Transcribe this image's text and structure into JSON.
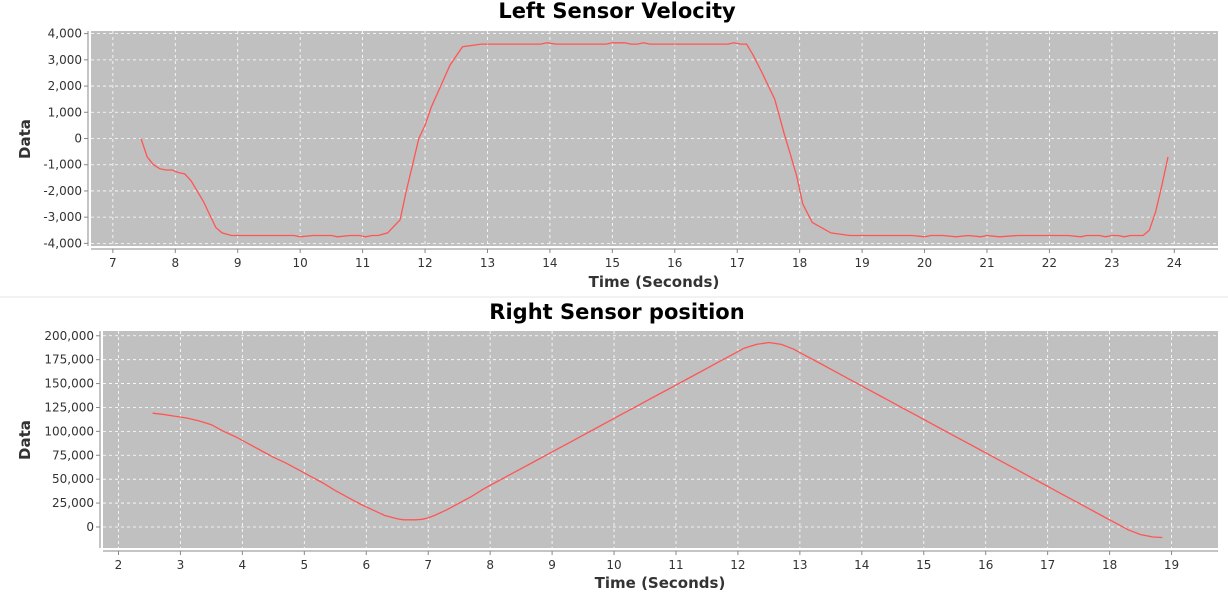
{
  "colors": {
    "plot_background": "#c0c0c0",
    "gridline": "#ffffff",
    "series_line": "#ff5555",
    "axis": "#888888"
  },
  "chart_data": [
    {
      "type": "line",
      "title": "Left Sensor Velocity",
      "xlabel": "Time (Seconds)",
      "ylabel": "Data",
      "xlim": [
        6.65,
        24.7
      ],
      "ylim": [
        -4100,
        4100
      ],
      "x_ticks": [
        7,
        8,
        9,
        10,
        11,
        12,
        13,
        14,
        15,
        16,
        17,
        18,
        19,
        20,
        21,
        22,
        23,
        24
      ],
      "x_tick_labels": [
        "7",
        "8",
        "9",
        "10",
        "11",
        "12",
        "13",
        "14",
        "15",
        "16",
        "17",
        "18",
        "19",
        "20",
        "21",
        "22",
        "23",
        "24"
      ],
      "y_ticks": [
        -4000,
        -3000,
        -2000,
        -1000,
        0,
        1000,
        2000,
        3000,
        4000
      ],
      "y_tick_labels": [
        "-4,000",
        "-3,000",
        "-2,000",
        "-1,000",
        "0",
        "1,000",
        "2,000",
        "3,000",
        "4,000"
      ],
      "grid": true,
      "series": [
        {
          "x": [
            7.45,
            7.55,
            7.65,
            7.75,
            7.85,
            7.95,
            8.05,
            8.15,
            8.25,
            8.35,
            8.45,
            8.55,
            8.65,
            8.75,
            8.9,
            9.2,
            9.6,
            9.9,
            10.0,
            10.2,
            10.5,
            10.6,
            10.8,
            10.95,
            11.05,
            11.15,
            11.25,
            11.4,
            11.6,
            11.7,
            11.8,
            11.9,
            12.0,
            12.1,
            12.25,
            12.4,
            12.6,
            12.9,
            13.3,
            13.7,
            13.85,
            13.95,
            14.1,
            14.5,
            14.9,
            15.0,
            15.1,
            15.2,
            15.3,
            15.4,
            15.5,
            15.6,
            16.0,
            16.5,
            16.6,
            16.7,
            16.85,
            16.95,
            17.05,
            17.15,
            17.25,
            17.4,
            17.6,
            17.75,
            17.85,
            17.95,
            18.05,
            18.2,
            18.5,
            18.8,
            19.0,
            19.5,
            19.6,
            19.8,
            20.0,
            20.1,
            20.3,
            20.5,
            20.7,
            20.9,
            21.0,
            21.2,
            21.5,
            21.8,
            22.0,
            22.3,
            22.5,
            22.6,
            22.8,
            22.9,
            23.0,
            23.1,
            23.2,
            23.3,
            23.4,
            23.5,
            23.6,
            23.7,
            23.8,
            23.9
          ],
          "y": [
            0,
            -700,
            -1000,
            -1150,
            -1200,
            -1200,
            -1300,
            -1350,
            -1600,
            -2000,
            -2400,
            -2900,
            -3400,
            -3600,
            -3700,
            -3700,
            -3700,
            -3700,
            -3750,
            -3700,
            -3700,
            -3750,
            -3700,
            -3700,
            -3750,
            -3700,
            -3700,
            -3600,
            -3100,
            -2000,
            -1000,
            0,
            500,
            1200,
            2000,
            2800,
            3500,
            3600,
            3600,
            3600,
            3600,
            3650,
            3600,
            3600,
            3600,
            3650,
            3650,
            3650,
            3600,
            3600,
            3650,
            3600,
            3600,
            3600,
            3600,
            3600,
            3600,
            3650,
            3600,
            3600,
            3200,
            2500,
            1500,
            200,
            -600,
            -1400,
            -2500,
            -3200,
            -3600,
            -3700,
            -3700,
            -3700,
            -3700,
            -3700,
            -3750,
            -3700,
            -3700,
            -3750,
            -3700,
            -3750,
            -3700,
            -3750,
            -3700,
            -3700,
            -3700,
            -3700,
            -3750,
            -3700,
            -3700,
            -3750,
            -3700,
            -3700,
            -3750,
            -3700,
            -3700,
            -3700,
            -3500,
            -2800,
            -1800,
            -700
          ],
          "y_note": "end"
        }
      ]
    },
    {
      "type": "line",
      "title": "Right Sensor position",
      "xlabel": "Time (Seconds)",
      "ylabel": "Data",
      "xlim": [
        1.75,
        19.75
      ],
      "ylim": [
        -22000,
        205000
      ],
      "x_ticks": [
        2,
        3,
        4,
        5,
        6,
        7,
        8,
        9,
        10,
        11,
        12,
        13,
        14,
        15,
        16,
        17,
        18,
        19
      ],
      "x_tick_labels": [
        "2",
        "3",
        "4",
        "5",
        "6",
        "7",
        "8",
        "9",
        "10",
        "11",
        "12",
        "13",
        "14",
        "15",
        "16",
        "17",
        "18",
        "19"
      ],
      "y_ticks": [
        0,
        25000,
        50000,
        75000,
        100000,
        125000,
        150000,
        175000,
        200000
      ],
      "y_tick_labels": [
        "0",
        "25,000",
        "50,000",
        "75,000",
        "100,000",
        "125,000",
        "150,000",
        "175,000",
        "200,000"
      ],
      "grid": true,
      "series": [
        {
          "x": [
            2.55,
            2.7,
            2.9,
            3.1,
            3.3,
            3.5,
            3.7,
            3.9,
            4.1,
            4.3,
            4.5,
            4.7,
            4.9,
            5.1,
            5.3,
            5.5,
            5.7,
            5.9,
            6.1,
            6.3,
            6.5,
            6.6,
            6.7,
            6.8,
            6.9,
            7.0,
            7.1,
            7.3,
            7.5,
            7.7,
            7.9,
            8.1,
            8.3,
            8.5,
            8.7,
            8.9,
            9.1,
            9.3,
            9.5,
            9.7,
            9.9,
            10.1,
            10.3,
            10.5,
            10.7,
            10.9,
            11.1,
            11.3,
            11.5,
            11.7,
            11.9,
            12.1,
            12.3,
            12.5,
            12.7,
            12.9,
            13.1,
            13.3,
            13.5,
            13.7,
            13.9,
            14.1,
            14.3,
            14.5,
            14.7,
            14.9,
            15.1,
            15.3,
            15.5,
            15.7,
            15.9,
            16.1,
            16.3,
            16.5,
            16.7,
            16.9,
            17.1,
            17.3,
            17.5,
            17.7,
            17.9,
            18.1,
            18.3,
            18.5,
            18.7,
            18.85
          ],
          "y": [
            119000,
            118000,
            116000,
            114000,
            111000,
            107000,
            100000,
            94000,
            87000,
            80000,
            73000,
            67000,
            60000,
            53000,
            46000,
            38000,
            31000,
            24000,
            18000,
            12000,
            8500,
            7500,
            7500,
            7500,
            8000,
            9500,
            12000,
            18000,
            25000,
            32000,
            40000,
            47000,
            54000,
            61000,
            68000,
            75000,
            82000,
            89000,
            96000,
            103000,
            110000,
            117000,
            124000,
            131000,
            138000,
            145000,
            152000,
            159000,
            166000,
            173000,
            180000,
            187000,
            191000,
            193000,
            191000,
            186000,
            179000,
            172000,
            165000,
            158000,
            151000,
            144000,
            137000,
            130000,
            123000,
            116000,
            109000,
            102000,
            95000,
            88000,
            81000,
            74000,
            67000,
            60000,
            53000,
            46000,
            39000,
            32000,
            25000,
            18000,
            11000,
            4000,
            -3000,
            -8000,
            -10500,
            -11000
          ]
        }
      ]
    }
  ]
}
